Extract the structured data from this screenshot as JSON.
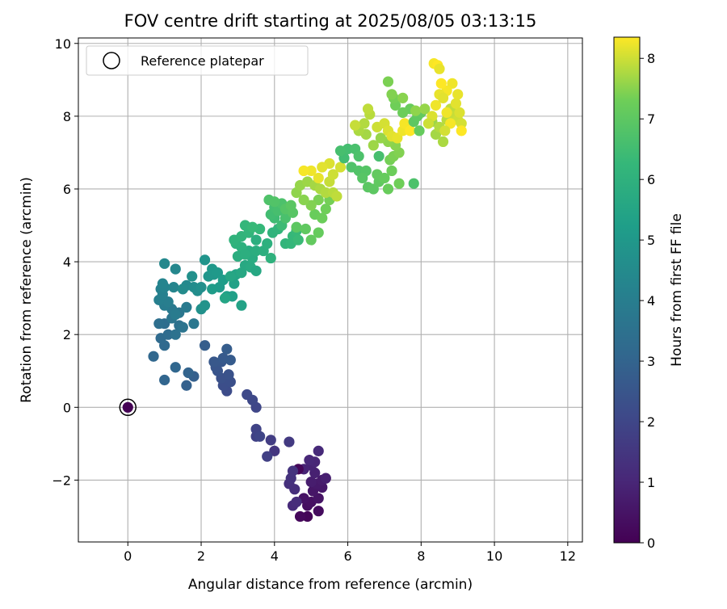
{
  "chart_data": {
    "type": "scatter",
    "title": "FOV centre drift starting at 2025/08/05 03:13:15",
    "xlabel": "Angular distance from reference (arcmin)",
    "ylabel": "Rotation from reference (arcmin)",
    "xlim": [
      -1.35,
      12.4
    ],
    "ylim": [
      -3.7,
      10.15
    ],
    "xticks": [
      0,
      2,
      4,
      6,
      8,
      10,
      12
    ],
    "yticks": [
      -2,
      0,
      2,
      4,
      6,
      8,
      10
    ],
    "xtick_labels": [
      "0",
      "2",
      "4",
      "6",
      "8",
      "10",
      "12"
    ],
    "ytick_labels": [
      "−2",
      "0",
      "2",
      "4",
      "6",
      "8",
      "10"
    ],
    "grid": true,
    "legend": {
      "position": "top-left",
      "entries": [
        "Reference platepar"
      ]
    },
    "reference_point": {
      "x": 0,
      "y": 0,
      "hours": 0
    },
    "colorbar": {
      "label": "Hours from first FF file",
      "range": [
        0,
        8.35
      ],
      "ticks": [
        0,
        1,
        2,
        3,
        4,
        5,
        6,
        7,
        8
      ],
      "tick_labels": [
        "0",
        "1",
        "2",
        "3",
        "4",
        "5",
        "6",
        "7",
        "8"
      ],
      "colormap": "viridis"
    },
    "points": [
      [
        4.9,
        -3.0,
        0.1
      ],
      [
        4.7,
        -3.0,
        0.2
      ],
      [
        5.2,
        -2.85,
        0.3
      ],
      [
        4.9,
        -2.7,
        0.35
      ],
      [
        5.0,
        -2.6,
        0.4
      ],
      [
        4.8,
        -2.5,
        0.45
      ],
      [
        5.2,
        -2.5,
        0.5
      ],
      [
        5.05,
        -2.3,
        0.55
      ],
      [
        5.3,
        -2.2,
        0.6
      ],
      [
        5.15,
        -2.1,
        0.65
      ],
      [
        5.3,
        -2.0,
        0.7
      ],
      [
        5.0,
        -2.05,
        0.75
      ],
      [
        5.4,
        -1.95,
        0.8
      ],
      [
        5.1,
        -1.8,
        0.85
      ],
      [
        5.0,
        -1.6,
        0.9
      ],
      [
        4.8,
        -1.7,
        0.95
      ],
      [
        5.1,
        -1.5,
        1.0
      ],
      [
        4.95,
        -1.45,
        1.05
      ],
      [
        5.2,
        -1.2,
        1.1
      ],
      [
        4.65,
        -1.7,
        0.15
      ],
      [
        4.5,
        -2.7,
        1.15
      ],
      [
        4.6,
        -2.6,
        1.2
      ],
      [
        4.55,
        -2.25,
        1.25
      ],
      [
        4.4,
        -2.1,
        1.3
      ],
      [
        4.45,
        -1.95,
        1.35
      ],
      [
        4.5,
        -1.75,
        1.4
      ],
      [
        4.0,
        -1.2,
        1.5
      ],
      [
        4.4,
        -0.95,
        1.6
      ],
      [
        3.9,
        -0.9,
        1.7
      ],
      [
        3.8,
        -1.35,
        1.8
      ],
      [
        3.5,
        -0.8,
        1.85
      ],
      [
        3.5,
        -0.6,
        1.9
      ],
      [
        3.6,
        -0.8,
        1.95
      ],
      [
        3.5,
        0.0,
        2.0
      ],
      [
        3.4,
        0.2,
        2.05
      ],
      [
        3.25,
        0.35,
        2.1
      ],
      [
        2.7,
        0.45,
        2.2
      ],
      [
        2.6,
        0.6,
        2.25
      ],
      [
        2.8,
        0.7,
        2.3
      ],
      [
        2.55,
        0.8,
        2.35
      ],
      [
        2.75,
        0.9,
        2.4
      ],
      [
        2.45,
        1.0,
        2.45
      ],
      [
        2.4,
        1.1,
        2.5
      ],
      [
        2.55,
        1.25,
        2.55
      ],
      [
        2.35,
        1.25,
        2.6
      ],
      [
        2.6,
        1.35,
        2.65
      ],
      [
        2.8,
        1.3,
        2.7
      ],
      [
        2.7,
        1.6,
        2.75
      ],
      [
        2.1,
        1.7,
        2.8
      ],
      [
        1.8,
        0.85,
        2.85
      ],
      [
        1.6,
        0.6,
        2.9
      ],
      [
        1.65,
        0.95,
        3.0
      ],
      [
        1.0,
        0.75,
        3.05
      ],
      [
        1.3,
        1.1,
        3.1
      ],
      [
        0.7,
        1.4,
        3.15
      ],
      [
        1.0,
        1.7,
        3.2
      ],
      [
        0.9,
        1.9,
        3.25
      ],
      [
        1.1,
        2.0,
        3.3
      ],
      [
        1.0,
        2.3,
        3.35
      ],
      [
        0.85,
        2.3,
        3.4
      ],
      [
        1.4,
        2.25,
        3.5
      ],
      [
        1.3,
        2.0,
        3.55
      ],
      [
        1.5,
        2.2,
        3.6
      ],
      [
        1.2,
        2.45,
        3.65
      ],
      [
        1.4,
        2.6,
        3.7
      ],
      [
        1.8,
        2.3,
        3.75
      ],
      [
        1.2,
        2.7,
        3.8
      ],
      [
        1.6,
        2.75,
        3.85
      ],
      [
        1.3,
        2.55,
        3.9
      ],
      [
        1.0,
        2.8,
        3.95
      ],
      [
        1.1,
        2.9,
        4.0
      ],
      [
        0.85,
        2.95,
        4.05
      ],
      [
        0.95,
        3.1,
        4.1
      ],
      [
        0.9,
        3.25,
        4.15
      ],
      [
        1.0,
        3.3,
        4.2
      ],
      [
        0.95,
        3.4,
        4.25
      ],
      [
        1.25,
        3.3,
        4.3
      ],
      [
        1.3,
        3.8,
        4.35
      ],
      [
        1.0,
        3.95,
        4.4
      ],
      [
        1.6,
        3.35,
        4.45
      ],
      [
        1.5,
        3.25,
        4.5
      ],
      [
        1.8,
        3.3,
        4.55
      ],
      [
        1.9,
        3.2,
        4.6
      ],
      [
        2.0,
        3.3,
        4.65
      ],
      [
        1.75,
        3.6,
        4.7
      ],
      [
        2.0,
        2.7,
        4.75
      ],
      [
        2.1,
        2.8,
        4.8
      ],
      [
        2.1,
        4.05,
        4.85
      ],
      [
        2.2,
        3.6,
        4.9
      ],
      [
        2.35,
        3.65,
        4.95
      ],
      [
        2.3,
        3.8,
        5.0
      ],
      [
        2.45,
        3.7,
        5.05
      ],
      [
        2.5,
        3.3,
        5.1
      ],
      [
        2.3,
        3.25,
        5.15
      ],
      [
        2.6,
        3.5,
        5.2
      ],
      [
        2.7,
        3.05,
        5.25
      ],
      [
        2.85,
        3.05,
        5.3
      ],
      [
        2.9,
        3.4,
        5.35
      ],
      [
        3.1,
        2.8,
        5.4
      ],
      [
        2.95,
        3.65,
        5.45
      ],
      [
        2.65,
        3.0,
        5.5
      ],
      [
        2.8,
        3.6,
        5.55
      ],
      [
        3.1,
        3.7,
        5.6
      ],
      [
        3.2,
        3.9,
        5.65
      ],
      [
        3.35,
        3.85,
        5.7
      ],
      [
        3.4,
        4.1,
        5.75
      ],
      [
        3.3,
        4.3,
        5.8
      ],
      [
        3.5,
        4.3,
        5.85
      ],
      [
        3.5,
        4.6,
        5.9
      ],
      [
        3.1,
        4.4,
        5.95
      ],
      [
        2.95,
        4.5,
        6.0
      ],
      [
        2.9,
        4.6,
        6.05
      ],
      [
        3.1,
        4.7,
        6.1
      ],
      [
        3.3,
        4.8,
        6.15
      ],
      [
        3.2,
        5.0,
        6.2
      ],
      [
        3.6,
        4.9,
        6.25
      ],
      [
        3.4,
        4.95,
        6.3
      ],
      [
        3.0,
        4.15,
        5.85
      ],
      [
        3.2,
        4.2,
        5.9
      ],
      [
        3.5,
        3.75,
        5.6
      ],
      [
        3.7,
        4.3,
        5.9
      ],
      [
        3.8,
        4.5,
        5.95
      ],
      [
        3.9,
        4.1,
        6.0
      ],
      [
        3.95,
        4.8,
        6.05
      ],
      [
        4.1,
        4.9,
        6.1
      ],
      [
        4.3,
        4.5,
        6.15
      ],
      [
        4.45,
        4.5,
        6.2
      ],
      [
        4.5,
        4.7,
        6.25
      ],
      [
        4.6,
        4.85,
        6.3
      ],
      [
        4.65,
        4.6,
        6.35
      ],
      [
        4.2,
        5.0,
        6.4
      ],
      [
        4.0,
        5.2,
        6.45
      ],
      [
        3.9,
        5.3,
        6.5
      ],
      [
        4.0,
        5.5,
        6.55
      ],
      [
        4.1,
        5.4,
        6.6
      ],
      [
        4.3,
        5.2,
        6.65
      ],
      [
        4.2,
        5.6,
        6.7
      ],
      [
        3.85,
        5.7,
        6.75
      ],
      [
        4.0,
        5.65,
        6.8
      ],
      [
        4.3,
        5.45,
        6.85
      ],
      [
        4.5,
        5.35,
        6.9
      ],
      [
        4.45,
        5.55,
        6.95
      ],
      [
        4.6,
        4.95,
        7.0
      ],
      [
        4.85,
        4.9,
        7.05
      ],
      [
        5.0,
        4.6,
        7.1
      ],
      [
        5.2,
        4.8,
        7.15
      ],
      [
        5.1,
        5.3,
        7.2
      ],
      [
        5.3,
        5.2,
        7.25
      ],
      [
        5.4,
        5.45,
        7.3
      ],
      [
        5.5,
        5.7,
        7.35
      ],
      [
        5.2,
        5.7,
        7.4
      ],
      [
        5.0,
        5.55,
        7.45
      ],
      [
        4.8,
        5.7,
        7.5
      ],
      [
        4.6,
        5.9,
        7.55
      ],
      [
        4.7,
        6.1,
        7.6
      ],
      [
        4.9,
        6.2,
        7.65
      ],
      [
        5.1,
        6.1,
        7.7
      ],
      [
        5.25,
        6.0,
        7.75
      ],
      [
        5.4,
        5.9,
        7.8
      ],
      [
        5.6,
        5.9,
        7.85
      ],
      [
        5.7,
        5.8,
        7.9
      ],
      [
        5.5,
        6.2,
        7.95
      ],
      [
        5.6,
        6.4,
        8.0
      ],
      [
        5.8,
        6.6,
        8.05
      ],
      [
        5.5,
        6.7,
        8.1
      ],
      [
        5.3,
        6.6,
        8.15
      ],
      [
        5.2,
        6.3,
        8.2
      ],
      [
        5.0,
        6.5,
        8.25
      ],
      [
        4.8,
        6.5,
        8.3
      ],
      [
        5.9,
        6.85,
        6.5
      ],
      [
        6.0,
        7.1,
        6.55
      ],
      [
        5.8,
        7.05,
        6.6
      ],
      [
        6.2,
        7.1,
        6.65
      ],
      [
        6.3,
        6.9,
        6.7
      ],
      [
        6.1,
        6.6,
        6.75
      ],
      [
        6.3,
        6.5,
        6.8
      ],
      [
        6.5,
        6.5,
        6.85
      ],
      [
        6.4,
        6.3,
        6.9
      ],
      [
        6.55,
        6.05,
        6.95
      ],
      [
        6.7,
        6.0,
        7.0
      ],
      [
        6.85,
        6.2,
        7.05
      ],
      [
        6.8,
        6.4,
        7.1
      ],
      [
        7.0,
        6.3,
        7.15
      ],
      [
        7.1,
        6.0,
        7.2
      ],
      [
        7.2,
        6.5,
        7.25
      ],
      [
        7.4,
        6.15,
        7.3
      ],
      [
        7.15,
        6.8,
        7.35
      ],
      [
        7.25,
        6.9,
        7.4
      ],
      [
        7.4,
        7.0,
        7.45
      ],
      [
        7.3,
        7.2,
        7.5
      ],
      [
        7.1,
        7.3,
        7.55
      ],
      [
        6.9,
        7.4,
        7.6
      ],
      [
        6.7,
        7.2,
        7.65
      ],
      [
        6.5,
        7.5,
        7.7
      ],
      [
        6.3,
        7.6,
        7.75
      ],
      [
        6.45,
        7.8,
        7.8
      ],
      [
        6.6,
        8.05,
        7.85
      ],
      [
        6.55,
        8.2,
        7.9
      ],
      [
        6.2,
        7.75,
        7.95
      ],
      [
        6.8,
        7.7,
        8.0
      ],
      [
        7.0,
        7.8,
        8.05
      ],
      [
        7.1,
        7.6,
        8.1
      ],
      [
        7.2,
        7.45,
        8.15
      ],
      [
        7.35,
        7.4,
        8.2
      ],
      [
        7.5,
        7.6,
        8.25
      ],
      [
        7.55,
        7.8,
        8.3
      ],
      [
        7.7,
        7.6,
        8.35
      ],
      [
        7.8,
        7.85,
        7.0
      ],
      [
        7.9,
        8.0,
        7.05
      ],
      [
        8.0,
        8.1,
        7.1
      ],
      [
        7.95,
        7.6,
        7.15
      ],
      [
        7.7,
        8.2,
        7.2
      ],
      [
        7.5,
        8.1,
        7.25
      ],
      [
        7.3,
        8.3,
        7.3
      ],
      [
        7.25,
        8.5,
        7.35
      ],
      [
        7.1,
        8.95,
        7.4
      ],
      [
        7.2,
        8.6,
        7.45
      ],
      [
        7.5,
        8.5,
        7.5
      ],
      [
        7.85,
        8.15,
        7.55
      ],
      [
        8.1,
        8.2,
        7.6
      ],
      [
        8.3,
        7.85,
        7.65
      ],
      [
        8.4,
        7.5,
        7.7
      ],
      [
        8.6,
        7.3,
        7.75
      ],
      [
        8.5,
        7.7,
        7.8
      ],
      [
        8.7,
        7.9,
        7.85
      ],
      [
        8.8,
        8.2,
        7.9
      ],
      [
        8.9,
        8.0,
        7.95
      ],
      [
        9.0,
        7.9,
        8.0
      ],
      [
        9.1,
        7.8,
        8.05
      ],
      [
        9.05,
        8.1,
        8.1
      ],
      [
        8.95,
        8.35,
        8.15
      ],
      [
        9.0,
        8.6,
        8.2
      ],
      [
        8.85,
        8.9,
        8.25
      ],
      [
        8.7,
        8.7,
        8.3
      ],
      [
        8.55,
        8.9,
        8.35
      ],
      [
        8.5,
        8.6,
        8.2
      ],
      [
        8.4,
        8.3,
        8.25
      ],
      [
        8.35,
        9.45,
        8.3
      ],
      [
        8.45,
        9.4,
        8.35
      ],
      [
        8.5,
        9.3,
        8.2
      ],
      [
        8.3,
        8.0,
        8.1
      ],
      [
        8.6,
        8.5,
        8.15
      ],
      [
        8.7,
        8.1,
        8.25
      ],
      [
        8.8,
        7.8,
        8.3
      ],
      [
        8.65,
        7.6,
        8.05
      ],
      [
        9.1,
        7.6,
        8.35
      ],
      [
        8.2,
        7.8,
        8.0
      ],
      [
        7.8,
        6.15,
        6.7
      ],
      [
        6.85,
        6.9,
        6.6
      ]
    ]
  }
}
